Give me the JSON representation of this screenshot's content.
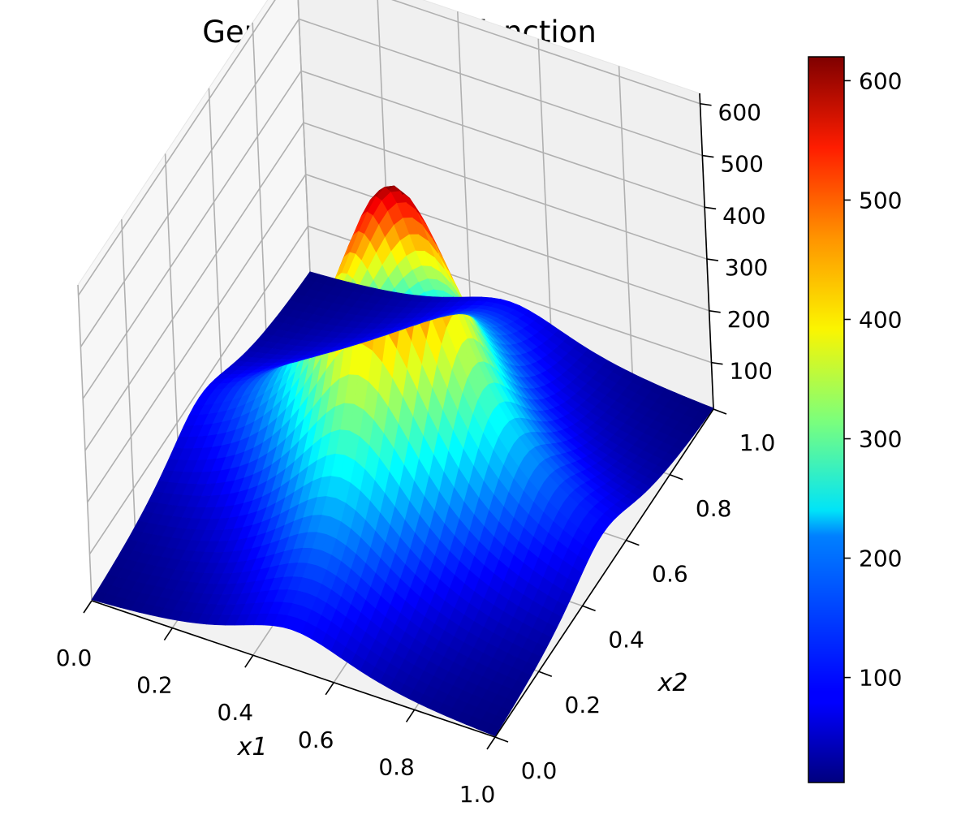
{
  "chart_data": {
    "type": "surface3d",
    "title": "GenzProductPeak function",
    "xlabel": "x1",
    "ylabel": "x2",
    "zlabel": "",
    "colormap": "jet",
    "xlim": [
      0,
      1
    ],
    "ylim": [
      0,
      1
    ],
    "zlim": [
      10,
      620
    ],
    "x_ticks": [
      "0.0",
      "0.2",
      "0.4",
      "0.6",
      "0.8",
      "1.0"
    ],
    "y_ticks": [
      "0.0",
      "0.2",
      "0.4",
      "0.6",
      "0.8",
      "1.0"
    ],
    "z_ticks": [
      "100",
      "200",
      "300",
      "400",
      "500",
      "600"
    ],
    "colorbar_ticks": [
      "100",
      "200",
      "300",
      "400",
      "500",
      "600"
    ],
    "colorbar_range": [
      12,
      620
    ],
    "grid": true,
    "peak": {
      "x1": 0.5,
      "x2": 0.5,
      "value": 620
    },
    "min_value": 12
  }
}
